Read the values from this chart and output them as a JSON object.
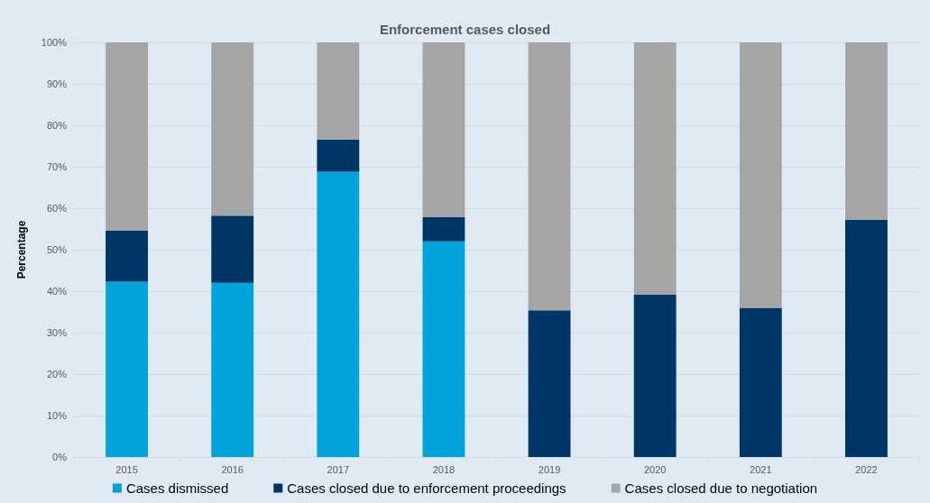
{
  "chart_data": {
    "type": "bar",
    "title": "Enforcement cases closed",
    "ylabel": "Percentage",
    "stacked": true,
    "categories": [
      "2015",
      "2016",
      "2017",
      "2018",
      "2019",
      "2020",
      "2021",
      "2022"
    ],
    "series": [
      {
        "name": "Cases dismissed",
        "color": "#00a3dc",
        "values": [
          42.3,
          42.0,
          68.8,
          52.0,
          0,
          0,
          0,
          0
        ]
      },
      {
        "name": "Cases closed due to enforcement proceedings",
        "color": "#003665",
        "values": [
          12.3,
          16.2,
          7.8,
          5.8,
          35.4,
          39.2,
          36.0,
          57.2
        ]
      },
      {
        "name": "Cases closed due to negotiation",
        "color": "#a5a5a5",
        "values": [
          45.4,
          41.8,
          23.4,
          42.2,
          64.6,
          60.8,
          64.0,
          42.8
        ]
      }
    ],
    "ylim": [
      0,
      100
    ],
    "yticks": [
      {
        "value": 0,
        "label": "0%"
      },
      {
        "value": 10,
        "label": "10%"
      },
      {
        "value": 20,
        "label": "20%"
      },
      {
        "value": 30,
        "label": "30%"
      },
      {
        "value": 40,
        "label": "40%"
      },
      {
        "value": 50,
        "label": "50%"
      },
      {
        "value": 60,
        "label": "60%"
      },
      {
        "value": 70,
        "label": "70%"
      },
      {
        "value": 80,
        "label": "80%"
      },
      {
        "value": 90,
        "label": "90%"
      },
      {
        "value": 100,
        "label": "100%"
      }
    ],
    "grid": "y",
    "legend": "bottom"
  }
}
